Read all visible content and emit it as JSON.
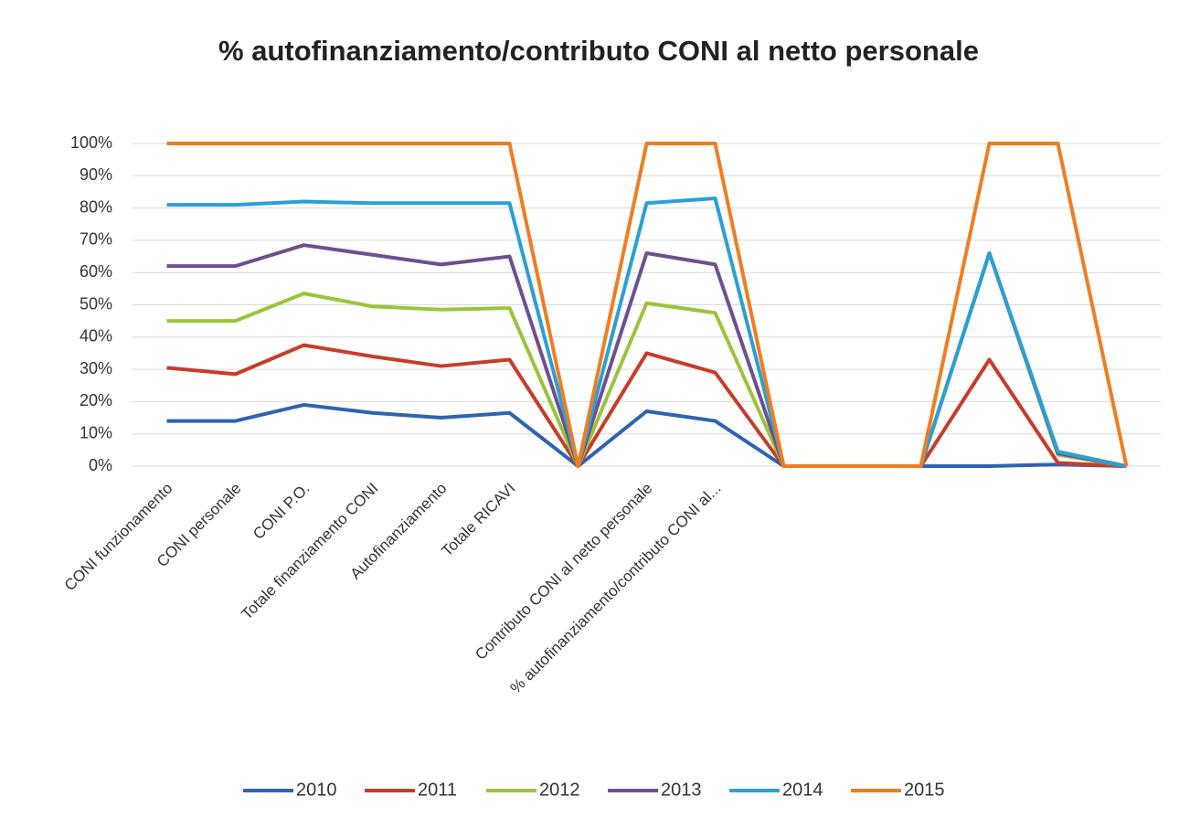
{
  "chart_data": {
    "type": "line",
    "title": "% autofinanziamento/contributo CONI al netto personale",
    "categories": [
      "CONI funzionamento",
      "CONI personale",
      "CONI P.O.",
      "Totale finanziamento CONI",
      "Autofinanziamento",
      "Totale RICAVI",
      null,
      "Contributo CONI al netto personale",
      "% autofinanziamento/contributo CONI al...",
      null,
      null,
      null,
      null,
      null,
      null
    ],
    "series": [
      {
        "name": "2010",
        "color": "#2e64b0",
        "values": [
          14,
          14,
          19,
          16.5,
          15,
          16.5,
          0,
          17,
          14,
          0,
          0,
          0,
          0,
          0.5,
          0
        ]
      },
      {
        "name": "2011",
        "color": "#c83c2a",
        "values": [
          30.5,
          28.5,
          37.5,
          34,
          31,
          33,
          0,
          35,
          29,
          0,
          0,
          0,
          33,
          1,
          0
        ]
      },
      {
        "name": "2012",
        "color": "#9bc43a",
        "values": [
          45,
          45,
          53.5,
          49.5,
          48.5,
          49,
          0,
          50.5,
          47.5,
          0,
          0,
          0,
          66,
          3.5,
          0
        ]
      },
      {
        "name": "2013",
        "color": "#6f4f8f",
        "values": [
          62,
          62,
          68.5,
          65.5,
          62.5,
          65,
          0,
          66,
          62.5,
          0,
          0,
          0,
          66,
          4,
          0
        ]
      },
      {
        "name": "2014",
        "color": "#2aa0d5",
        "values": [
          81,
          81,
          82,
          81.5,
          81.5,
          81.5,
          0,
          81.5,
          83,
          0,
          0,
          0,
          66,
          4.5,
          0
        ]
      },
      {
        "name": "2015",
        "color": "#ef7d22",
        "values": [
          100,
          100,
          100,
          100,
          100,
          100,
          0,
          100,
          100,
          0,
          0,
          0,
          100,
          100,
          0
        ]
      }
    ],
    "ylim": [
      0,
      100
    ],
    "yticks": [
      {
        "value": 0,
        "label": "0%"
      },
      {
        "value": 10,
        "label": "10%"
      },
      {
        "value": 20,
        "label": "20%"
      },
      {
        "value": 30,
        "label": "30%"
      },
      {
        "value": 40,
        "label": "40%"
      },
      {
        "value": 50,
        "label": "50%"
      },
      {
        "value": 60,
        "label": "60%"
      },
      {
        "value": 70,
        "label": "70%"
      },
      {
        "value": 80,
        "label": "80%"
      },
      {
        "value": 90,
        "label": "90%"
      },
      {
        "value": 100,
        "label": "100%"
      }
    ],
    "grid": true,
    "legend": "bottom"
  }
}
